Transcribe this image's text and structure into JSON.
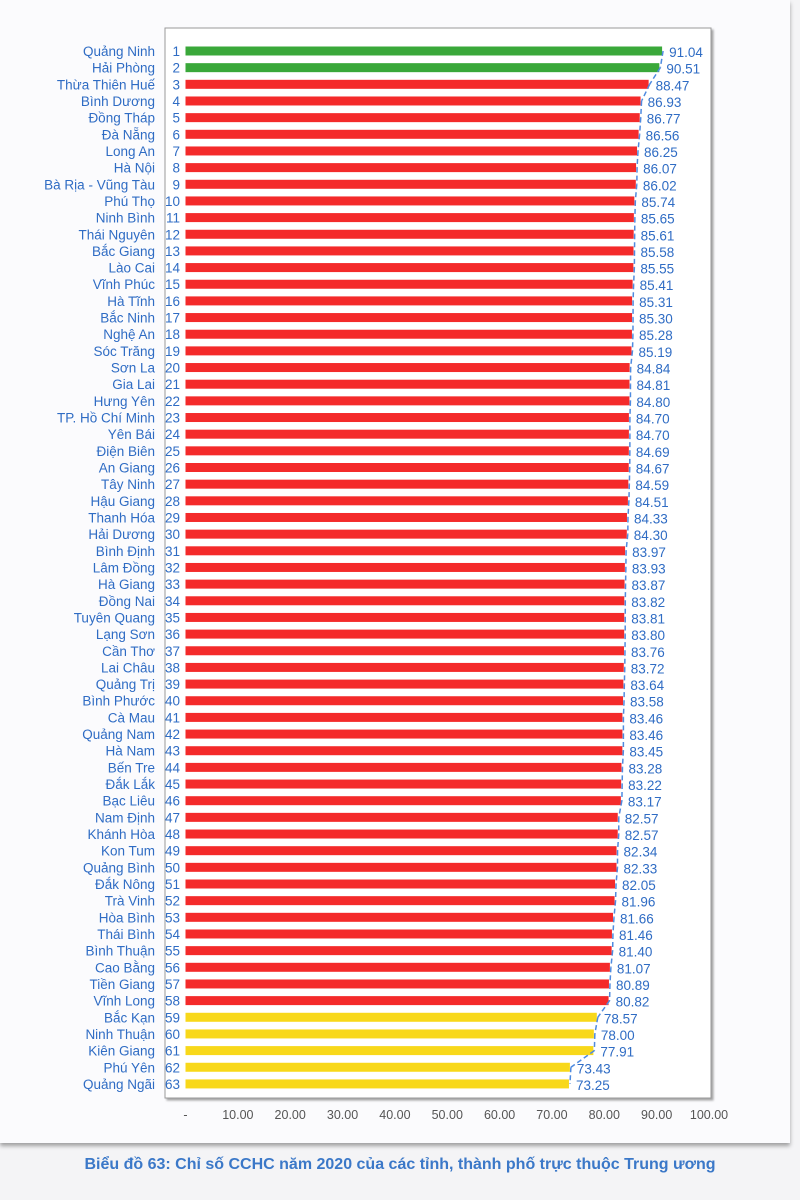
{
  "caption": "Biểu đồ 63: Chỉ số CCHC năm 2020 của các tỉnh, thành phố trực thuộc Trung ương",
  "chart_data": {
    "type": "bar",
    "orientation": "horizontal",
    "title": "Biểu đồ 63: Chỉ số CCHC năm 2020 của các tỉnh, thành phố trực thuộc Trung ương",
    "xlabel": "",
    "ylabel": "",
    "xlim": [
      0,
      100
    ],
    "x_ticks": [
      "-",
      "10.00",
      "20.00",
      "30.00",
      "40.00",
      "50.00",
      "60.00",
      "70.00",
      "80.00",
      "90.00",
      "100.00"
    ],
    "grid": false,
    "colors": {
      "top": "#3aa83a",
      "middle": "#f42a2a",
      "bottom": "#f8d81a",
      "label": "#2f6cc4",
      "trend": "#4f8be0"
    },
    "categories": [
      "Quảng Ninh",
      "Hải Phòng",
      "Thừa Thiên Huế",
      "Bình Dương",
      "Đồng Tháp",
      "Đà Nẵng",
      "Long An",
      "Hà Nội",
      "Bà Rịa - Vũng Tàu",
      "Phú Thọ",
      "Ninh Bình",
      "Thái Nguyên",
      "Bắc Giang",
      "Lào Cai",
      "Vĩnh Phúc",
      "Hà Tĩnh",
      "Bắc Ninh",
      "Nghệ An",
      "Sóc Trăng",
      "Sơn La",
      "Gia Lai",
      "Hưng Yên",
      "TP. Hồ Chí Minh",
      "Yên Bái",
      "Điện Biên",
      "An Giang",
      "Tây Ninh",
      "Hậu Giang",
      "Thanh Hóa",
      "Hải Dương",
      "Bình Định",
      "Lâm Đồng",
      "Hà Giang",
      "Đồng Nai",
      "Tuyên Quang",
      "Lạng Sơn",
      "Cần Thơ",
      "Lai Châu",
      "Quảng Trị",
      "Bình Phước",
      "Cà Mau",
      "Quảng Nam",
      "Hà Nam",
      "Bến Tre",
      "Đắk Lắk",
      "Bạc Liêu",
      "Nam Định",
      "Khánh Hòa",
      "Kon Tum",
      "Quảng Bình",
      "Đắk Nông",
      "Trà Vinh",
      "Hòa Bình",
      "Thái Bình",
      "Bình Thuận",
      "Cao Bằng",
      "Tiền Giang",
      "Vĩnh Long",
      "Bắc Kạn",
      "Ninh Thuận",
      "Kiên Giang",
      "Phú Yên",
      "Quảng Ngãi"
    ],
    "values": [
      91.04,
      90.51,
      88.47,
      86.93,
      86.77,
      86.56,
      86.25,
      86.07,
      86.02,
      85.74,
      85.65,
      85.61,
      85.58,
      85.55,
      85.41,
      85.31,
      85.3,
      85.28,
      85.19,
      84.84,
      84.81,
      84.8,
      84.7,
      84.7,
      84.69,
      84.67,
      84.59,
      84.51,
      84.33,
      84.3,
      83.97,
      83.93,
      83.87,
      83.82,
      83.81,
      83.8,
      83.76,
      83.72,
      83.64,
      83.58,
      83.46,
      83.46,
      83.45,
      83.28,
      83.22,
      83.17,
      82.57,
      82.57,
      82.34,
      82.33,
      82.05,
      81.96,
      81.66,
      81.46,
      81.4,
      81.07,
      80.89,
      80.82,
      78.57,
      78.0,
      77.91,
      73.43,
      73.25
    ],
    "value_labels": [
      "91.04",
      "90.51",
      "88.47",
      "86.93",
      "86.77",
      "86.56",
      "86.25",
      "86.07",
      "86.02",
      "85.74",
      "85.65",
      "85.61",
      "85.58",
      "85.55",
      "85.41",
      "85.31",
      "85.30",
      "85.28",
      "85.19",
      "84.84",
      "84.81",
      "84.80",
      "84.70",
      "84.70",
      "84.69",
      "84.67",
      "84.59",
      "84.51",
      "84.33",
      "84.30",
      "83.97",
      "83.93",
      "83.87",
      "83.82",
      "83.81",
      "83.80",
      "83.76",
      "83.72",
      "83.64",
      "83.58",
      "83.46",
      "83.46",
      "83.45",
      "83.28",
      "83.22",
      "83.17",
      "82.57",
      "82.57",
      "82.34",
      "82.33",
      "82.05",
      "81.96",
      "81.66",
      "81.46",
      "81.40",
      "81.07",
      "80.89",
      "80.82",
      "78.57",
      "78.00",
      "77.91",
      "73.43",
      "73.25"
    ],
    "color_groups": {
      "green_ranks": [
        1,
        2
      ],
      "red_ranks": [
        3,
        58
      ],
      "yellow_ranks": [
        59,
        63
      ]
    }
  }
}
